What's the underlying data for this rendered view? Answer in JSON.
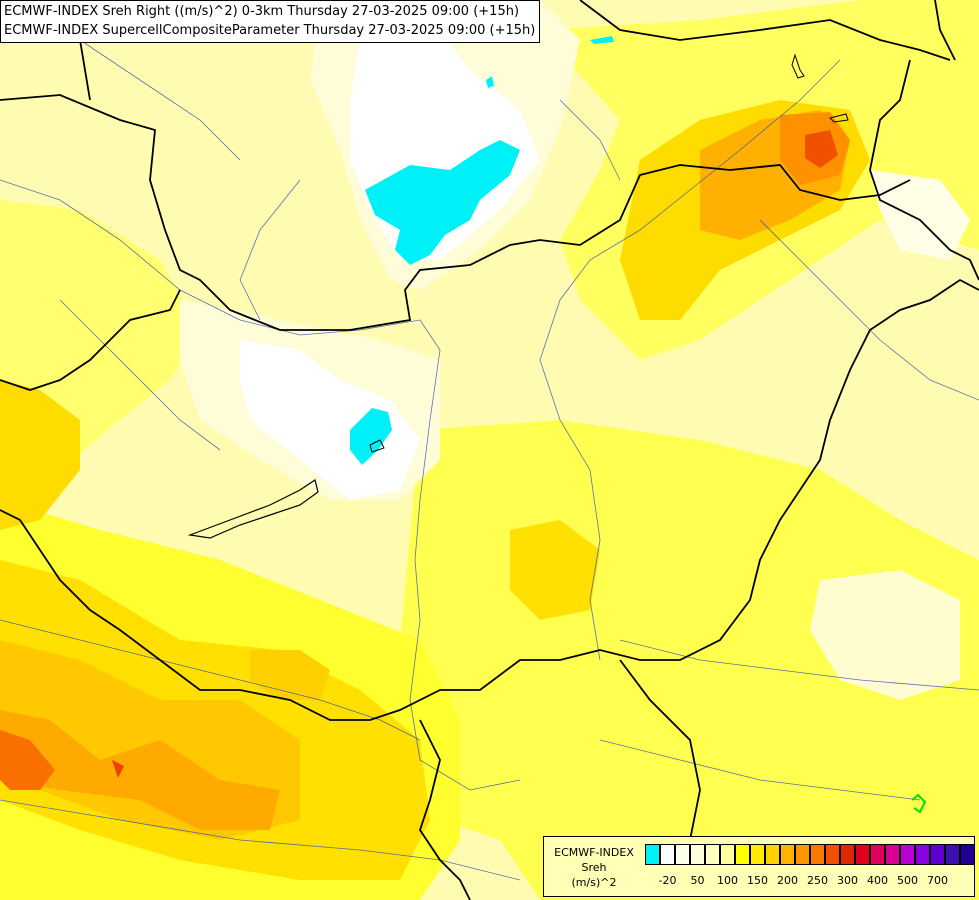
{
  "titles": {
    "line1": "ECMWF-INDEX Sreh Right ((m/s)^2) 0-3km Thursday 27-03-2025 09:00 (+15h)",
    "line2": "ECMWF-INDEX SupercellCompositeParameter Thursday 27-03-2025 09:00 (+15h)"
  },
  "legend": {
    "label_line1": "ECMWF-INDEX",
    "label_line2": "Sreh",
    "label_line3": "(m/s)^2",
    "colors": [
      "#00f0f8",
      "#ffffff",
      "#ffffee",
      "#ffffdd",
      "#ffffc0",
      "#ffffa0",
      "#ffff00",
      "#ffea00",
      "#ffd200",
      "#ffb400",
      "#ff9600",
      "#f87800",
      "#f05000",
      "#e02800",
      "#e00020",
      "#e00060",
      "#d80090",
      "#b800d0",
      "#8c00e0",
      "#6000d0",
      "#3c10b0",
      "#200090"
    ],
    "ticks": [
      "-20",
      "50",
      "100",
      "150",
      "200",
      "250",
      "300",
      "400",
      "500",
      "700"
    ]
  },
  "map": {
    "fill_colors": {
      "cyan": "#00f0f8",
      "white": "#ffffff",
      "pale": "#fffcc0",
      "light_yellow": "#ffffa0",
      "yellow": "#ffff00",
      "gold": "#ffea00",
      "amber": "#ffd200",
      "orange": "#ffb400",
      "dark_orange": "#ff9600",
      "red_orange": "#f05000",
      "green_marker": "#00e000"
    }
  }
}
